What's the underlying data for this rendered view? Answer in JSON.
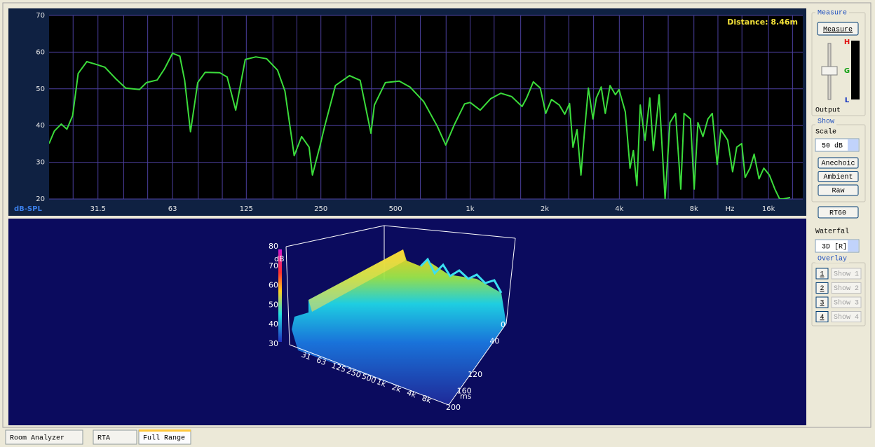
{
  "chart_data": {
    "type": "line",
    "x_scale": "log",
    "xlim": [
      20,
      22000
    ],
    "ylim": [
      20,
      70
    ],
    "yticks": [
      20,
      30,
      40,
      50,
      60,
      70
    ],
    "xticks": [
      31.5,
      63,
      125,
      250,
      500,
      {
        "value": 1000,
        "label": "1k"
      },
      {
        "value": 2000,
        "label": "2k"
      },
      {
        "value": 4000,
        "label": "4k"
      },
      {
        "value": 8000,
        "label": "8k"
      },
      {
        "value": 16000,
        "label": "16k"
      }
    ],
    "x_minor_ticks": [
      25,
      40,
      50,
      80,
      100,
      160,
      200,
      315,
      400,
      630,
      800,
      1250,
      1600,
      2500,
      3150,
      5000,
      6300,
      10000,
      12500,
      20000
    ],
    "x_unit_label": "Hz",
    "y_label": "dB-SPL",
    "annotation": "Distance: 8.46m",
    "grid": true,
    "grid_color": "#4b3f9e",
    "background": "#000000",
    "x": [
      20,
      21,
      22.4,
      23.6,
      24.9,
      26.2,
      28.4,
      30.5,
      33.6,
      37.1,
      40.8,
      46.3,
      49.4,
      54.6,
      58.5,
      63,
      67.4,
      70.5,
      74.4,
      79.6,
      85.3,
      97.6,
      104.6,
      113.3,
      123.8,
      136.6,
      151,
      167,
      179,
      195,
      209,
      224,
      231,
      247,
      259,
      286,
      326,
      360,
      398,
      411,
      455,
      518,
      572,
      650,
      737,
      797,
      863,
      950,
      1000,
      1098,
      1210,
      1330,
      1470,
      1620,
      1690,
      1800,
      1920,
      2020,
      2130,
      2290,
      2410,
      2520,
      2600,
      2700,
      2800,
      2900,
      3000,
      3130,
      3230,
      3380,
      3510,
      3670,
      3860,
      3990,
      4230,
      4420,
      4560,
      4710,
      4860,
      5080,
      5310,
      5490,
      5790,
      6120,
      6400,
      6750,
      7080,
      7300,
      7750,
      8020,
      8300,
      8700,
      9110,
      9490,
      9930,
      10270,
      10950,
      11460,
      11910,
      12470,
      12880,
      13470,
      14000,
      14650,
      15320,
      16130,
      16980,
      17750,
      18300,
      19560
    ],
    "series": [
      {
        "color": "#3bdc3b",
        "values": [
          35.1,
          38.5,
          40.4,
          39,
          42.7,
          54.2,
          57.4,
          56.8,
          55.9,
          52.8,
          50.2,
          49.8,
          51.7,
          52.4,
          55.5,
          59.7,
          58.9,
          52.3,
          38.3,
          51.7,
          54.5,
          54.4,
          53.2,
          44.2,
          58,
          58.7,
          58.2,
          55.1,
          49.4,
          31.8,
          37,
          34.1,
          26.5,
          34.1,
          39.8,
          50.9,
          53.6,
          52.3,
          37.9,
          45.6,
          51.7,
          52.1,
          50.5,
          46.5,
          39.8,
          34.7,
          40.2,
          45.9,
          46.3,
          44.2,
          47.3,
          48.8,
          47.9,
          45.2,
          47.5,
          51.9,
          50.2,
          43.3,
          47.1,
          45.6,
          43.1,
          46,
          34.1,
          38.9,
          26.5,
          38.9,
          50.2,
          41.8,
          47.5,
          50.5,
          43.3,
          50.9,
          48.4,
          49.8,
          43.7,
          28.4,
          33.2,
          23.6,
          45.6,
          36,
          47.5,
          33.2,
          48.4,
          20,
          40.8,
          43.3,
          22.7,
          43.3,
          41.8,
          22.7,
          40.8,
          37,
          41.8,
          43.3,
          29.4,
          38.9,
          36,
          27.4,
          34.1,
          35.1,
          25.9,
          28.4,
          32.2,
          25.5,
          28.4,
          26.5,
          22.7,
          20,
          20,
          20.4
        ]
      }
    ]
  },
  "waterfall": {
    "z_ticks": [
      30,
      40,
      50,
      60,
      70,
      80
    ],
    "z_label": "dB",
    "time_ticks": [
      0,
      40,
      120,
      160,
      200
    ],
    "time_label": "ms",
    "freq_labels": [
      "31",
      "63",
      "125",
      "250",
      "500",
      "1k",
      "2k",
      "4k",
      "8k"
    ]
  },
  "panel": {
    "measure_group": "Measure",
    "measure_button": "Measure",
    "meter_labels": [
      "H",
      "G",
      "L"
    ],
    "output_label": "Output",
    "show_group": "Show",
    "scale_label": "Scale",
    "scale_value": "50 dB",
    "show_buttons": [
      "Anechoic",
      "Ambient",
      "Raw"
    ],
    "rt60_button": "RT60",
    "waterfall_label": "Waterfal",
    "waterfall_value": "3D [R]",
    "overlay_group": "Overlay",
    "overlay_items": [
      {
        "number": "1",
        "label": "Show 1"
      },
      {
        "number": "2",
        "label": "Show 2"
      },
      {
        "number": "3",
        "label": "Show 3"
      },
      {
        "number": "4",
        "label": "Show 4"
      }
    ]
  },
  "tabs": [
    "Room Analyzer",
    "RTA",
    "Full Range"
  ]
}
